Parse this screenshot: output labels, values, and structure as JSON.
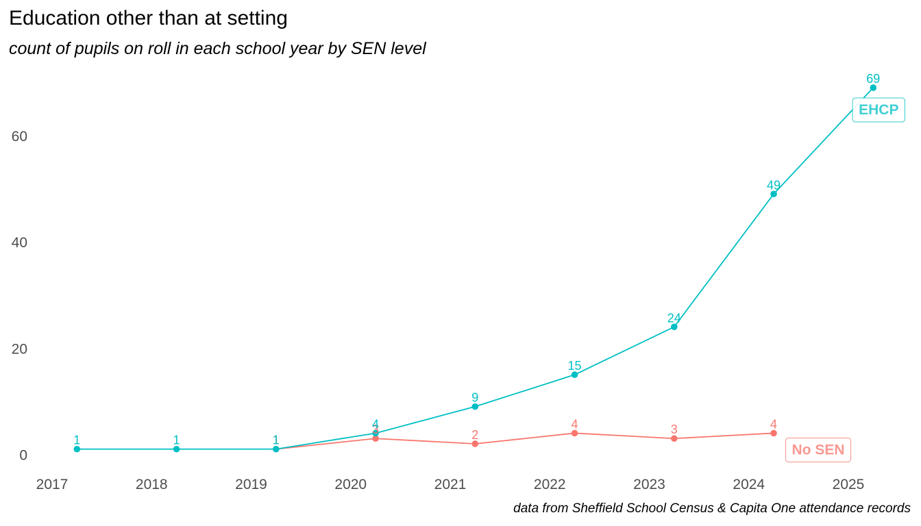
{
  "header": {
    "title": "Education other than at setting",
    "subtitle": "count of pupils on roll in each school year by SEN level",
    "caption": "data from Sheffield School Census & Capita One attendance records"
  },
  "chart_data": {
    "type": "line",
    "title": "Education other than at setting",
    "subtitle": "count of pupils on roll in each school year by SEN level",
    "caption": "data from Sheffield School Census & Capita One attendance records",
    "xlabel": "",
    "ylabel": "",
    "x_ticks": [
      2017,
      2018,
      2019,
      2020,
      2021,
      2022,
      2023,
      2024,
      2025
    ],
    "y_ticks": [
      0,
      20,
      40,
      60
    ],
    "xlim": [
      2017,
      2025.3
    ],
    "ylim": [
      0,
      70
    ],
    "grid": false,
    "legend": "direct labels at line ends",
    "series": [
      {
        "name": "EHCP",
        "color": "#00BFC4",
        "x": [
          2017.25,
          2018.25,
          2019.25,
          2020.25,
          2021.25,
          2022.25,
          2023.25,
          2024.25,
          2025.25
        ],
        "values": [
          1,
          1,
          1,
          4,
          9,
          15,
          24,
          49,
          69
        ],
        "labels": [
          "1",
          "1",
          "1",
          "4",
          "9",
          "15",
          "24",
          "49",
          "69"
        ]
      },
      {
        "name": "No SEN",
        "color": "#F8766D",
        "x": [
          2019.25,
          2020.25,
          2021.25,
          2022.25,
          2023.25,
          2024.25
        ],
        "values": [
          1,
          3,
          2,
          4,
          3,
          4
        ],
        "labels": [
          "1",
          "3",
          "2",
          "4",
          "3",
          "4"
        ]
      }
    ]
  }
}
